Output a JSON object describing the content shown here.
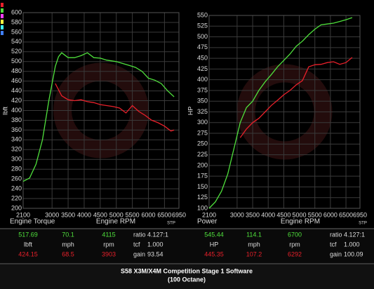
{
  "chart_data": [
    {
      "type": "line",
      "ylabel": "lbft",
      "xlabel": "Engine RPM",
      "corner_label": "Engine Torque",
      "unit_note": "STP",
      "xlim": [
        2100,
        6950
      ],
      "xticks": [
        2100,
        3000,
        3500,
        4000,
        4500,
        5000,
        5500,
        6000,
        6500,
        6950
      ],
      "ylim": [
        200,
        600
      ],
      "yticks": [
        200,
        220,
        240,
        260,
        280,
        300,
        320,
        340,
        360,
        380,
        400,
        420,
        440,
        460,
        480,
        500,
        520,
        540,
        560,
        580,
        600
      ],
      "grid": true,
      "series": [
        {
          "color": "#4fe03c",
          "x": [
            2100,
            2300,
            2500,
            2700,
            2900,
            3100,
            3200,
            3300,
            3500,
            3700,
            3900,
            4100,
            4300,
            4500,
            4700,
            5000,
            5200,
            5400,
            5600,
            5800,
            6000,
            6200,
            6400,
            6600,
            6800
          ],
          "values": [
            255,
            262,
            290,
            340,
            420,
            490,
            510,
            518,
            508,
            508,
            512,
            518,
            508,
            507,
            503,
            500,
            496,
            492,
            488,
            480,
            466,
            462,
            455,
            440,
            428
          ]
        },
        {
          "color": "#e8202a",
          "x": [
            3100,
            3300,
            3500,
            3700,
            3900,
            4100,
            4300,
            4500,
            4700,
            4900,
            5100,
            5300,
            5500,
            5700,
            5900,
            6100,
            6300,
            6500,
            6700,
            6800
          ],
          "values": [
            455,
            430,
            422,
            420,
            422,
            418,
            416,
            412,
            410,
            408,
            405,
            395,
            410,
            398,
            390,
            380,
            375,
            368,
            358,
            360
          ]
        }
      ]
    },
    {
      "type": "line",
      "ylabel": "HP",
      "xlabel": "Engine RPM",
      "corner_label": "Power",
      "unit_note": "STP",
      "xlim": [
        2100,
        6950
      ],
      "xticks": [
        2100,
        3000,
        3500,
        4000,
        4500,
        5000,
        5500,
        6000,
        6500,
        6950
      ],
      "ylim": [
        100,
        550
      ],
      "yticks": [
        100,
        125,
        150,
        175,
        200,
        225,
        250,
        275,
        300,
        325,
        350,
        375,
        400,
        425,
        450,
        475,
        500,
        525,
        550
      ],
      "grid": true,
      "series": [
        {
          "color": "#4fe03c",
          "x": [
            2100,
            2300,
            2500,
            2700,
            2900,
            3100,
            3300,
            3500,
            3700,
            3900,
            4100,
            4300,
            4500,
            4700,
            4900,
            5100,
            5300,
            5500,
            5700,
            5900,
            6100,
            6300,
            6500,
            6700
          ],
          "values": [
            100,
            115,
            140,
            180,
            240,
            300,
            335,
            350,
            375,
            395,
            412,
            430,
            445,
            460,
            478,
            490,
            505,
            518,
            528,
            530,
            532,
            536,
            540,
            545
          ]
        },
        {
          "color": "#e8202a",
          "x": [
            3100,
            3300,
            3500,
            3700,
            3900,
            4100,
            4300,
            4500,
            4700,
            4900,
            5100,
            5300,
            5500,
            5700,
            5900,
            6100,
            6300,
            6500,
            6700
          ],
          "values": [
            265,
            285,
            300,
            310,
            325,
            340,
            352,
            365,
            375,
            388,
            398,
            430,
            435,
            436,
            440,
            442,
            436,
            440,
            452
          ]
        }
      ]
    }
  ],
  "readouts": [
    {
      "rows": [
        [
          "517.69",
          "70.1",
          "4115",
          "ratio",
          "4.127:1"
        ],
        [
          "lbft",
          "mph",
          "rpm",
          "tcf",
          "1.000"
        ],
        [
          "424.15",
          "68.5",
          "3903",
          "gain",
          "93.54"
        ]
      ]
    },
    {
      "rows": [
        [
          "545.44",
          "114.1",
          "6700",
          "ratio",
          "4.127:1"
        ],
        [
          "HP",
          "mph",
          "rpm",
          "tcf",
          "1.000"
        ],
        [
          "445.35",
          "107.2",
          "6292",
          "gain",
          "100.09"
        ]
      ]
    }
  ],
  "footer": {
    "title": "S58 X3M/X4M Competition Stage 1 Software",
    "subtitle": "(100 Octane)"
  }
}
